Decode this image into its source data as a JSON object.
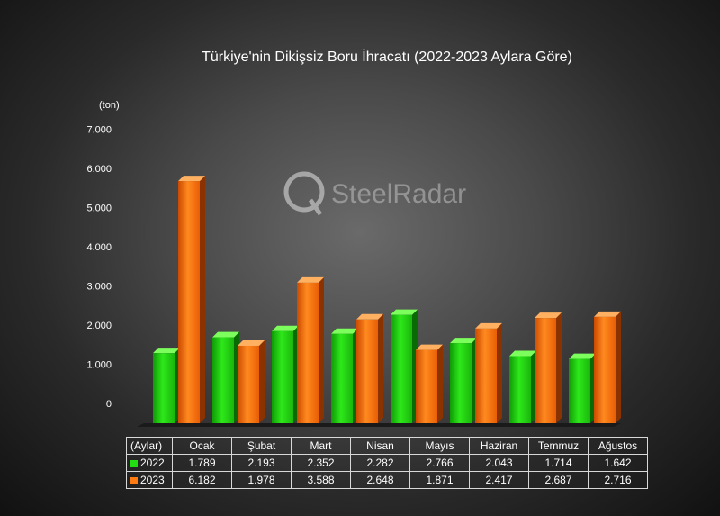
{
  "colors": {
    "y2022": "#22dd11",
    "y2023": "#ff7a10"
  },
  "watermark": {
    "text": "SteelRadar"
  },
  "chart_data": {
    "type": "bar",
    "title": "Türkiye'nin Dikişsiz Boru İhracatı (2022-2023 Aylara Göre)",
    "ylabel": "(ton)",
    "xlabel": "(Aylar)",
    "ylim": [
      0,
      7000
    ],
    "yticks": [
      "0",
      "1.000",
      "2.000",
      "3.000",
      "4.000",
      "5.000",
      "6.000",
      "7.000"
    ],
    "categories": [
      "Ocak",
      "Şubat",
      "Mart",
      "Nisan",
      "Mayıs",
      "Haziran",
      "Temmuz",
      "Ağustos"
    ],
    "series": [
      {
        "name": "2022",
        "values": [
          1789,
          2193,
          2352,
          2282,
          2766,
          2043,
          1714,
          1642
        ],
        "labels": [
          "1.789",
          "2.193",
          "2.352",
          "2.282",
          "2.766",
          "2.043",
          "1.714",
          "1.642"
        ]
      },
      {
        "name": "2023",
        "values": [
          6182,
          1978,
          3588,
          2648,
          1871,
          2417,
          2687,
          2716
        ],
        "labels": [
          "6.182",
          "1.978",
          "3.588",
          "2.648",
          "1.871",
          "2.417",
          "2.687",
          "2.716"
        ]
      }
    ],
    "legend": "data-table"
  }
}
